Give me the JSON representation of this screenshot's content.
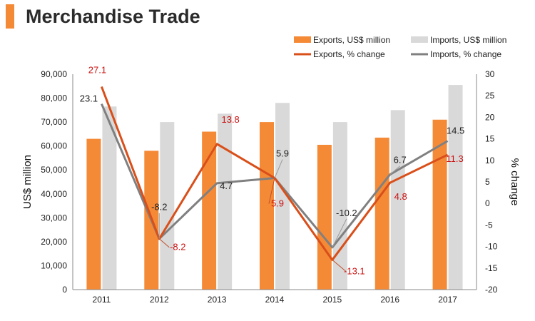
{
  "page_title": "Merchandise Trade",
  "colors": {
    "exports": "#f58a36",
    "imports": "#d9d9d9",
    "exports_line": "#d94f1a",
    "imports_line": "#808080",
    "exports_label": "#cc1111",
    "imports_label": "#222222"
  },
  "chart_data": {
    "type": "bar",
    "categories": [
      "2011",
      "2012",
      "2013",
      "2014",
      "2015",
      "2016",
      "2017"
    ],
    "series": [
      {
        "name": "Exports, US$ million",
        "type": "bar",
        "axis": "left",
        "values": [
          63000,
          58000,
          66000,
          70000,
          60500,
          63500,
          71000
        ]
      },
      {
        "name": "Imports, US$ million",
        "type": "bar",
        "axis": "left",
        "values": [
          76500,
          70000,
          73500,
          78000,
          70000,
          75000,
          85500
        ]
      },
      {
        "name": "Exports, % change",
        "type": "line",
        "axis": "right",
        "values": [
          27.1,
          -8.2,
          13.8,
          5.9,
          -13.1,
          4.8,
          11.3
        ],
        "labels": [
          "27.1",
          "-8.2",
          "13.8",
          "5.9",
          "-13.1",
          "4.8",
          "11.3"
        ]
      },
      {
        "name": "Imports, % change",
        "type": "line",
        "axis": "right",
        "values": [
          23.1,
          -8.2,
          4.7,
          5.9,
          -10.2,
          6.7,
          14.5
        ],
        "labels": [
          "23.1",
          "-8.2",
          "4.7",
          "5.9",
          "-10.2",
          "6.7",
          "14.5"
        ]
      }
    ],
    "ylabel": "US$ million",
    "y2label": "% change",
    "ylim": [
      0,
      90000
    ],
    "y2lim": [
      -20,
      30
    ],
    "yticks": [
      "0",
      "10,000",
      "20,000",
      "30,000",
      "40,000",
      "50,000",
      "60,000",
      "70,000",
      "80,000",
      "90,000"
    ],
    "y2ticks": [
      "-20",
      "-15",
      "-10",
      "-5",
      "0",
      "5",
      "10",
      "15",
      "20",
      "25",
      "30"
    ],
    "grid": false,
    "legend_position": "top-right"
  }
}
